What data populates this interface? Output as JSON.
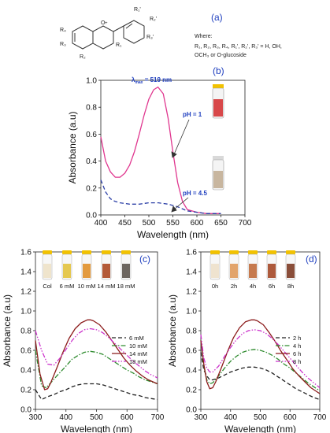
{
  "structure": {
    "substituents": {
      "r1p": "R₁'",
      "r2p": "R₂'",
      "r3p": "R₃'",
      "r4": "R₄",
      "r3": "R₃",
      "r2": "R₂",
      "r1": "R₁",
      "o_plus": "O"
    },
    "where_label": "Where:",
    "where_line1": "R₁, R₂, R₃, R₄, R₁', R₂', R₃' = H, OH,",
    "where_line2": "OCH₃ or O-glucoside"
  },
  "chart_data": [
    {
      "panel": "(a)",
      "type": "other"
    },
    {
      "panel": "(b)",
      "type": "line",
      "xlabel": "Wavelength (nm)",
      "ylabel": "Absorbance (a.u)",
      "xlim": [
        400,
        700
      ],
      "ylim": [
        0.0,
        1.0
      ],
      "xticks": [
        "400",
        "450",
        "500",
        "550",
        "600",
        "650",
        "700"
      ],
      "yticks": [
        "0.0",
        "0.2",
        "0.4",
        "0.6",
        "0.8",
        "1.0"
      ],
      "annotations": {
        "lmax_prefix": "λ",
        "lmax_sub": "max",
        "lmax_value": " = 519 nm",
        "ph1": "pH = 1",
        "ph45": "pH = 4.5"
      },
      "series": [
        {
          "name": "pH = 1",
          "color": "#e0378f",
          "dash": "solid",
          "x": [
            400,
            410,
            420,
            430,
            440,
            450,
            460,
            470,
            480,
            490,
            500,
            510,
            519,
            530,
            540,
            550,
            560,
            570,
            580,
            600,
            620,
            650
          ],
          "y": [
            0.58,
            0.4,
            0.32,
            0.28,
            0.28,
            0.31,
            0.37,
            0.47,
            0.6,
            0.74,
            0.86,
            0.93,
            0.95,
            0.9,
            0.72,
            0.47,
            0.24,
            0.1,
            0.04,
            0.02,
            0.01,
            0.01
          ]
        },
        {
          "name": "pH = 4.5",
          "color": "#2b3fa6",
          "dash": "dashed",
          "x": [
            400,
            410,
            420,
            430,
            440,
            460,
            480,
            500,
            520,
            540,
            560,
            580,
            600,
            620,
            650
          ],
          "y": [
            0.26,
            0.17,
            0.12,
            0.1,
            0.09,
            0.08,
            0.08,
            0.09,
            0.09,
            0.08,
            0.06,
            0.03,
            0.02,
            0.01,
            0.01
          ]
        }
      ]
    },
    {
      "panel": "(c)",
      "type": "line",
      "xlabel": "Wavelength (nm)",
      "ylabel": "Absorbance (a.u)",
      "xlim": [
        300,
        700
      ],
      "ylim": [
        0.0,
        1.6
      ],
      "xticks": [
        "300",
        "400",
        "500",
        "600",
        "700"
      ],
      "yticks": [
        "0.0",
        "0.2",
        "0.4",
        "0.6",
        "0.8",
        "1.0",
        "1.2",
        "1.4",
        "1.6"
      ],
      "vial_labels": [
        "Col",
        "6 mM",
        "10 mM",
        "14 mM",
        "18 mM"
      ],
      "series": [
        {
          "name": "6 mM",
          "color": "#222222",
          "dash": "dashed",
          "x": [
            300,
            320,
            340,
            360,
            380,
            400,
            420,
            440,
            460,
            480,
            500,
            520,
            540,
            560,
            580,
            600,
            620,
            640,
            660,
            680,
            700
          ],
          "y": [
            0.2,
            0.1,
            0.13,
            0.15,
            0.18,
            0.2,
            0.23,
            0.25,
            0.26,
            0.26,
            0.26,
            0.25,
            0.23,
            0.21,
            0.19,
            0.17,
            0.15,
            0.14,
            0.12,
            0.11,
            0.1
          ]
        },
        {
          "name": "10 mM",
          "color": "#2e8b2e",
          "dash": "dashdot",
          "x": [
            300,
            320,
            335,
            350,
            370,
            400,
            420,
            440,
            460,
            480,
            500,
            520,
            540,
            560,
            580,
            600,
            620,
            640,
            660,
            680,
            700
          ],
          "y": [
            0.6,
            0.24,
            0.22,
            0.27,
            0.34,
            0.44,
            0.51,
            0.55,
            0.58,
            0.59,
            0.58,
            0.56,
            0.52,
            0.48,
            0.44,
            0.4,
            0.37,
            0.33,
            0.3,
            0.28,
            0.26
          ]
        },
        {
          "name": "14 mM",
          "color": "#8b1a1a",
          "dash": "solid",
          "x": [
            300,
            315,
            330,
            340,
            350,
            370,
            390,
            410,
            430,
            450,
            470,
            480,
            490,
            510,
            530,
            550,
            570,
            590,
            610,
            630,
            650,
            670,
            700
          ],
          "y": [
            0.7,
            0.36,
            0.2,
            0.21,
            0.27,
            0.42,
            0.58,
            0.72,
            0.82,
            0.88,
            0.91,
            0.91,
            0.9,
            0.86,
            0.79,
            0.7,
            0.61,
            0.52,
            0.45,
            0.39,
            0.34,
            0.3,
            0.26
          ]
        },
        {
          "name": "18 mM",
          "color": "#cc33cc",
          "dash": "dashdotdot",
          "x": [
            300,
            320,
            340,
            360,
            380,
            400,
            420,
            440,
            460,
            480,
            500,
            520,
            540,
            560,
            580,
            600,
            620,
            640,
            660,
            680,
            700
          ],
          "y": [
            0.8,
            0.6,
            0.46,
            0.45,
            0.52,
            0.61,
            0.7,
            0.77,
            0.81,
            0.82,
            0.81,
            0.78,
            0.73,
            0.67,
            0.61,
            0.55,
            0.49,
            0.44,
            0.39,
            0.35,
            0.32
          ]
        }
      ]
    },
    {
      "panel": "(d)",
      "type": "line",
      "xlabel": "Wavelength (nm)",
      "ylabel": "Absorbance (a.u)",
      "xlim": [
        300,
        700
      ],
      "ylim": [
        0.0,
        1.6
      ],
      "xticks": [
        "300",
        "400",
        "500",
        "600",
        "700"
      ],
      "yticks": [
        "0.0",
        "0.2",
        "0.4",
        "0.6",
        "0.8",
        "1.0",
        "1.2",
        "1.4",
        "1.6"
      ],
      "vial_labels": [
        "0h",
        "2h",
        "4h",
        "6h",
        "8h"
      ],
      "series": [
        {
          "name": "2 h",
          "color": "#222222",
          "dash": "dashed",
          "x": [
            300,
            310,
            320,
            330,
            340,
            360,
            380,
            400,
            420,
            440,
            460,
            480,
            500,
            520,
            540,
            560,
            580,
            600,
            620,
            640,
            660,
            680,
            700
          ],
          "y": [
            0.58,
            0.4,
            0.34,
            0.3,
            0.3,
            0.32,
            0.35,
            0.38,
            0.4,
            0.42,
            0.43,
            0.43,
            0.42,
            0.4,
            0.37,
            0.33,
            0.29,
            0.25,
            0.21,
            0.18,
            0.15,
            0.12,
            0.1
          ]
        },
        {
          "name": "4 h",
          "color": "#2e8b2e",
          "dash": "dashdot",
          "x": [
            300,
            310,
            320,
            330,
            340,
            360,
            380,
            400,
            420,
            440,
            460,
            480,
            500,
            520,
            540,
            560,
            580,
            600,
            620,
            640,
            660,
            680,
            700
          ],
          "y": [
            0.7,
            0.44,
            0.3,
            0.26,
            0.27,
            0.34,
            0.42,
            0.49,
            0.54,
            0.58,
            0.6,
            0.61,
            0.6,
            0.58,
            0.55,
            0.51,
            0.46,
            0.42,
            0.37,
            0.32,
            0.27,
            0.23,
            0.19
          ]
        },
        {
          "name": "6 h",
          "color": "#8b1a1a",
          "dash": "solid",
          "x": [
            300,
            310,
            320,
            330,
            340,
            350,
            370,
            390,
            410,
            430,
            450,
            470,
            480,
            490,
            510,
            530,
            550,
            570,
            590,
            610,
            630,
            650,
            670,
            700
          ],
          "y": [
            0.7,
            0.46,
            0.28,
            0.21,
            0.22,
            0.28,
            0.43,
            0.59,
            0.73,
            0.83,
            0.89,
            0.91,
            0.91,
            0.9,
            0.86,
            0.78,
            0.69,
            0.59,
            0.5,
            0.41,
            0.34,
            0.28,
            0.22,
            0.16
          ]
        },
        {
          "name": "8 h",
          "color": "#cc33cc",
          "dash": "dashdotdot",
          "x": [
            300,
            310,
            320,
            330,
            340,
            360,
            380,
            400,
            420,
            440,
            460,
            480,
            500,
            520,
            540,
            560,
            580,
            600,
            620,
            640,
            660,
            680,
            700
          ],
          "y": [
            0.76,
            0.52,
            0.42,
            0.38,
            0.38,
            0.44,
            0.54,
            0.63,
            0.71,
            0.77,
            0.8,
            0.81,
            0.8,
            0.77,
            0.72,
            0.66,
            0.59,
            0.52,
            0.45,
            0.38,
            0.32,
            0.27,
            0.22
          ]
        }
      ]
    }
  ],
  "colors": {
    "vials_b": [
      "#d8484a",
      "#c8b69f"
    ],
    "vials_c": [
      "#efe4cc",
      "#e5c850",
      "#e39a3e",
      "#b45a38",
      "#6d6660"
    ],
    "vials_d": [
      "#efe3cf",
      "#e2a46c",
      "#c67a4e",
      "#ad5a3c",
      "#8a4e3a"
    ],
    "label_blue": "#1f3fbf"
  }
}
